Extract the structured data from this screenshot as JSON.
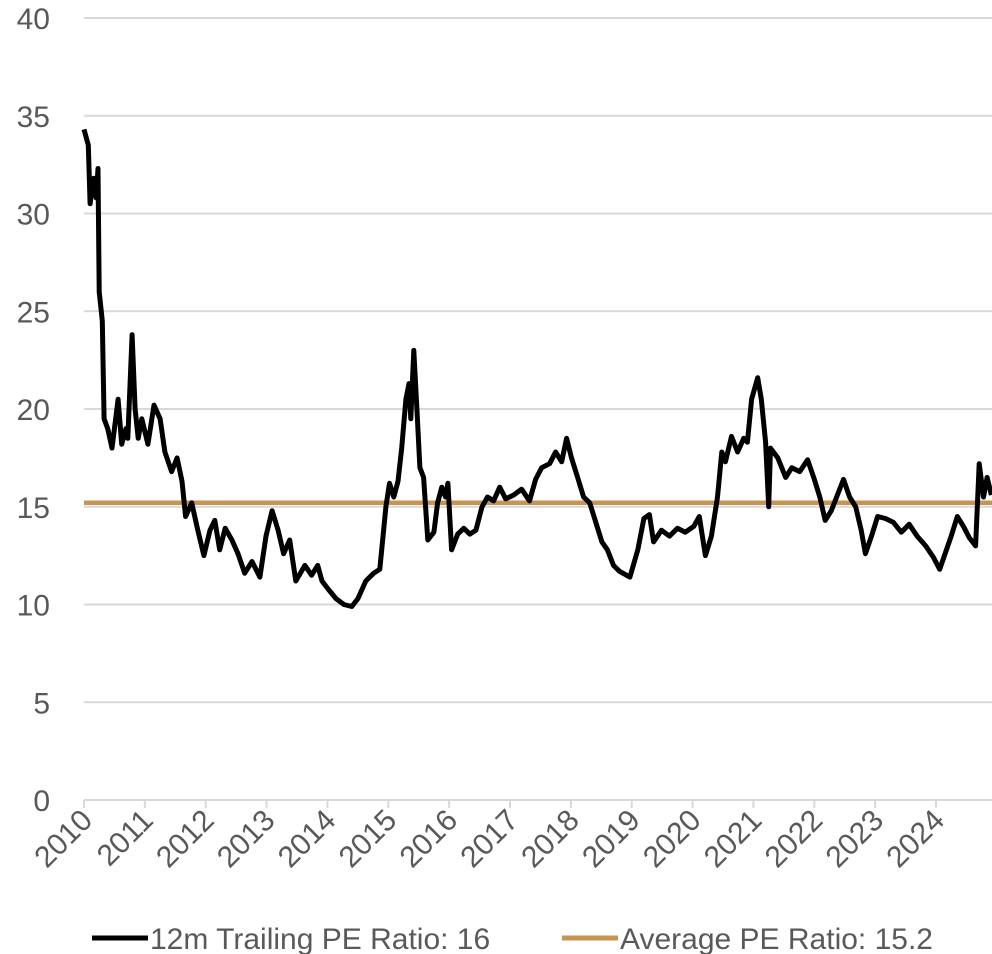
{
  "chart_data": {
    "type": "line",
    "xlim": [
      2010,
      2024.92
    ],
    "ylim": [
      0,
      40
    ],
    "xticks": [
      2010,
      2011,
      2012,
      2013,
      2014,
      2015,
      2016,
      2017,
      2018,
      2019,
      2020,
      2021,
      2022,
      2023,
      2024
    ],
    "yticks": [
      0,
      5,
      10,
      15,
      20,
      25,
      30,
      35,
      40
    ],
    "grid": true,
    "legend": "bottom",
    "series": [
      {
        "name": "12m Trailing PE Ratio: 16",
        "color": "#000000",
        "x": [
          2010.0,
          2010.07,
          2010.1,
          2010.16,
          2010.2,
          2010.23,
          2010.25,
          2010.3,
          2010.33,
          2010.39,
          2010.46,
          2010.56,
          2010.62,
          2010.69,
          2010.72,
          2010.79,
          2010.84,
          2010.89,
          2010.95,
          2011.05,
          2011.15,
          2011.25,
          2011.33,
          2011.44,
          2011.53,
          2011.61,
          2011.67,
          2011.77,
          2011.87,
          2011.97,
          2012.07,
          2012.15,
          2012.23,
          2012.32,
          2012.43,
          2012.53,
          2012.64,
          2012.76,
          2012.89,
          2012.99,
          2013.09,
          2013.19,
          2013.28,
          2013.38,
          2013.48,
          2013.63,
          2013.74,
          2013.84,
          2013.91,
          2014.01,
          2014.14,
          2014.27,
          2014.4,
          2014.5,
          2014.63,
          2014.76,
          2014.86,
          2014.96,
          2015.02,
          2015.09,
          2015.16,
          2015.22,
          2015.29,
          2015.34,
          2015.37,
          2015.42,
          2015.47,
          2015.52,
          2015.58,
          2015.65,
          2015.75,
          2015.81,
          2015.88,
          2015.94,
          2015.98,
          2016.04,
          2016.14,
          2016.24,
          2016.34,
          2016.44,
          2016.54,
          2016.63,
          2016.73,
          2016.83,
          2016.93,
          2017.06,
          2017.19,
          2017.32,
          2017.42,
          2017.52,
          2017.65,
          2017.75,
          2017.85,
          2017.93,
          2018.01,
          2018.11,
          2018.21,
          2018.31,
          2018.41,
          2018.51,
          2018.6,
          2018.7,
          2018.8,
          2018.97,
          2019.1,
          2019.2,
          2019.29,
          2019.36,
          2019.49,
          2019.62,
          2019.75,
          2019.88,
          2020.02,
          2020.11,
          2020.21,
          2020.31,
          2020.41,
          2020.48,
          2020.54,
          2020.64,
          2020.74,
          2020.84,
          2020.9,
          2020.97,
          2021.07,
          2021.13,
          2021.2,
          2021.25,
          2021.28,
          2021.4,
          2021.53,
          2021.63,
          2021.76,
          2021.89,
          2021.99,
          2022.09,
          2022.18,
          2022.28,
          2022.38,
          2022.48,
          2022.58,
          2022.68,
          2022.77,
          2022.84,
          2022.94,
          2023.04,
          2023.17,
          2023.3,
          2023.43,
          2023.56,
          2023.69,
          2023.83,
          2023.96,
          2024.06,
          2024.15,
          2024.25,
          2024.35,
          2024.45,
          2024.55,
          2024.65,
          2024.71,
          2024.78,
          2024.84,
          2024.91
        ],
        "values": [
          34.3,
          33.5,
          30.5,
          31.8,
          30.8,
          32.3,
          26,
          24.5,
          19.5,
          19,
          18,
          20.5,
          18.2,
          19,
          18.5,
          23.8,
          20,
          18.5,
          19.5,
          18.2,
          20.2,
          19.5,
          17.8,
          16.8,
          17.5,
          16.3,
          14.5,
          15.2,
          13.8,
          12.5,
          13.8,
          14.3,
          12.8,
          13.9,
          13.3,
          12.6,
          11.6,
          12.2,
          11.4,
          13.5,
          14.8,
          13.8,
          12.6,
          13.3,
          11.2,
          12,
          11.5,
          12,
          11.2,
          10.8,
          10.3,
          10,
          9.9,
          10.3,
          11.2,
          11.6,
          11.8,
          15,
          16.2,
          15.5,
          16.3,
          18,
          20.5,
          21.3,
          19.5,
          23,
          20,
          17,
          16.5,
          13.3,
          13.7,
          15.2,
          16,
          15.5,
          16.2,
          12.8,
          13.6,
          13.9,
          13.6,
          13.8,
          15,
          15.5,
          15.3,
          16,
          15.4,
          15.6,
          15.9,
          15.3,
          16.4,
          17,
          17.2,
          17.8,
          17.3,
          18.5,
          17.5,
          16.5,
          15.5,
          15.2,
          14.2,
          13.2,
          12.8,
          12,
          11.7,
          11.4,
          12.8,
          14.4,
          14.6,
          13.2,
          13.8,
          13.5,
          13.9,
          13.7,
          14,
          14.5,
          12.5,
          13.5,
          15.5,
          17.8,
          17.3,
          18.6,
          17.8,
          18.5,
          18.3,
          20.5,
          21.6,
          20.5,
          18.3,
          15,
          18,
          17.5,
          16.5,
          17,
          16.8,
          17.4,
          16.5,
          15.5,
          14.3,
          14.8,
          15.6,
          16.4,
          15.5,
          15,
          13.8,
          12.6,
          13.5,
          14.5,
          14.4,
          14.2,
          13.7,
          14.1,
          13.5,
          13,
          12.4,
          11.8,
          12.6,
          13.5,
          14.5,
          14,
          13.4,
          13,
          17.2,
          15.5,
          16.5,
          15.6
        ]
      },
      {
        "name": "Average PE Ratio: 15.2",
        "color": "#c9944f",
        "x": [
          2010,
          2024.92
        ],
        "values": [
          15.2,
          15.2
        ]
      }
    ]
  }
}
